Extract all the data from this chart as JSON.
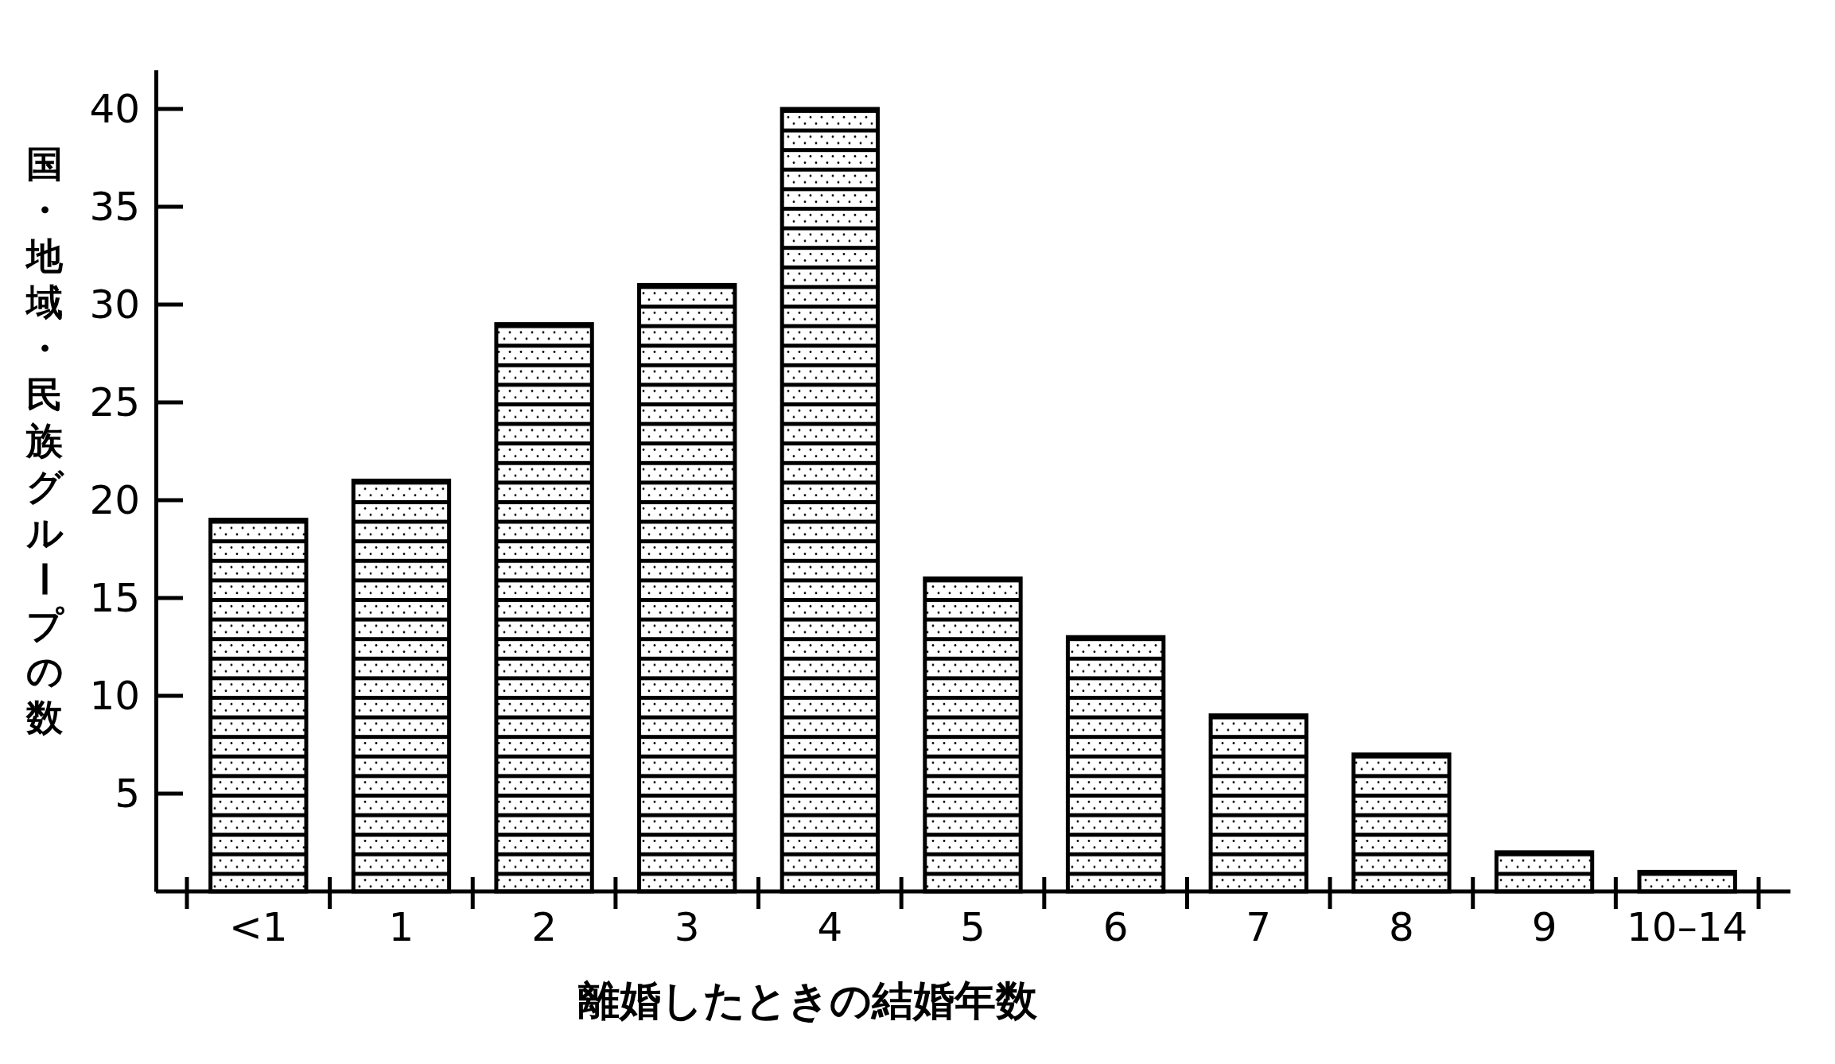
{
  "chart_data": {
    "type": "bar",
    "categories": [
      "<1",
      "1",
      "2",
      "3",
      "4",
      "5",
      "6",
      "7",
      "8",
      "9",
      "10–14"
    ],
    "values": [
      19,
      21,
      29,
      31,
      40,
      16,
      13,
      9,
      7,
      2,
      1
    ],
    "color": "#000000",
    "ylim": [
      0,
      42
    ],
    "yticks": [
      5,
      10,
      15,
      20,
      25,
      30,
      35,
      40
    ],
    "xlabel": "離婚したときの結婚年数",
    "ylabel": "国・地域・民族グループの数"
  }
}
